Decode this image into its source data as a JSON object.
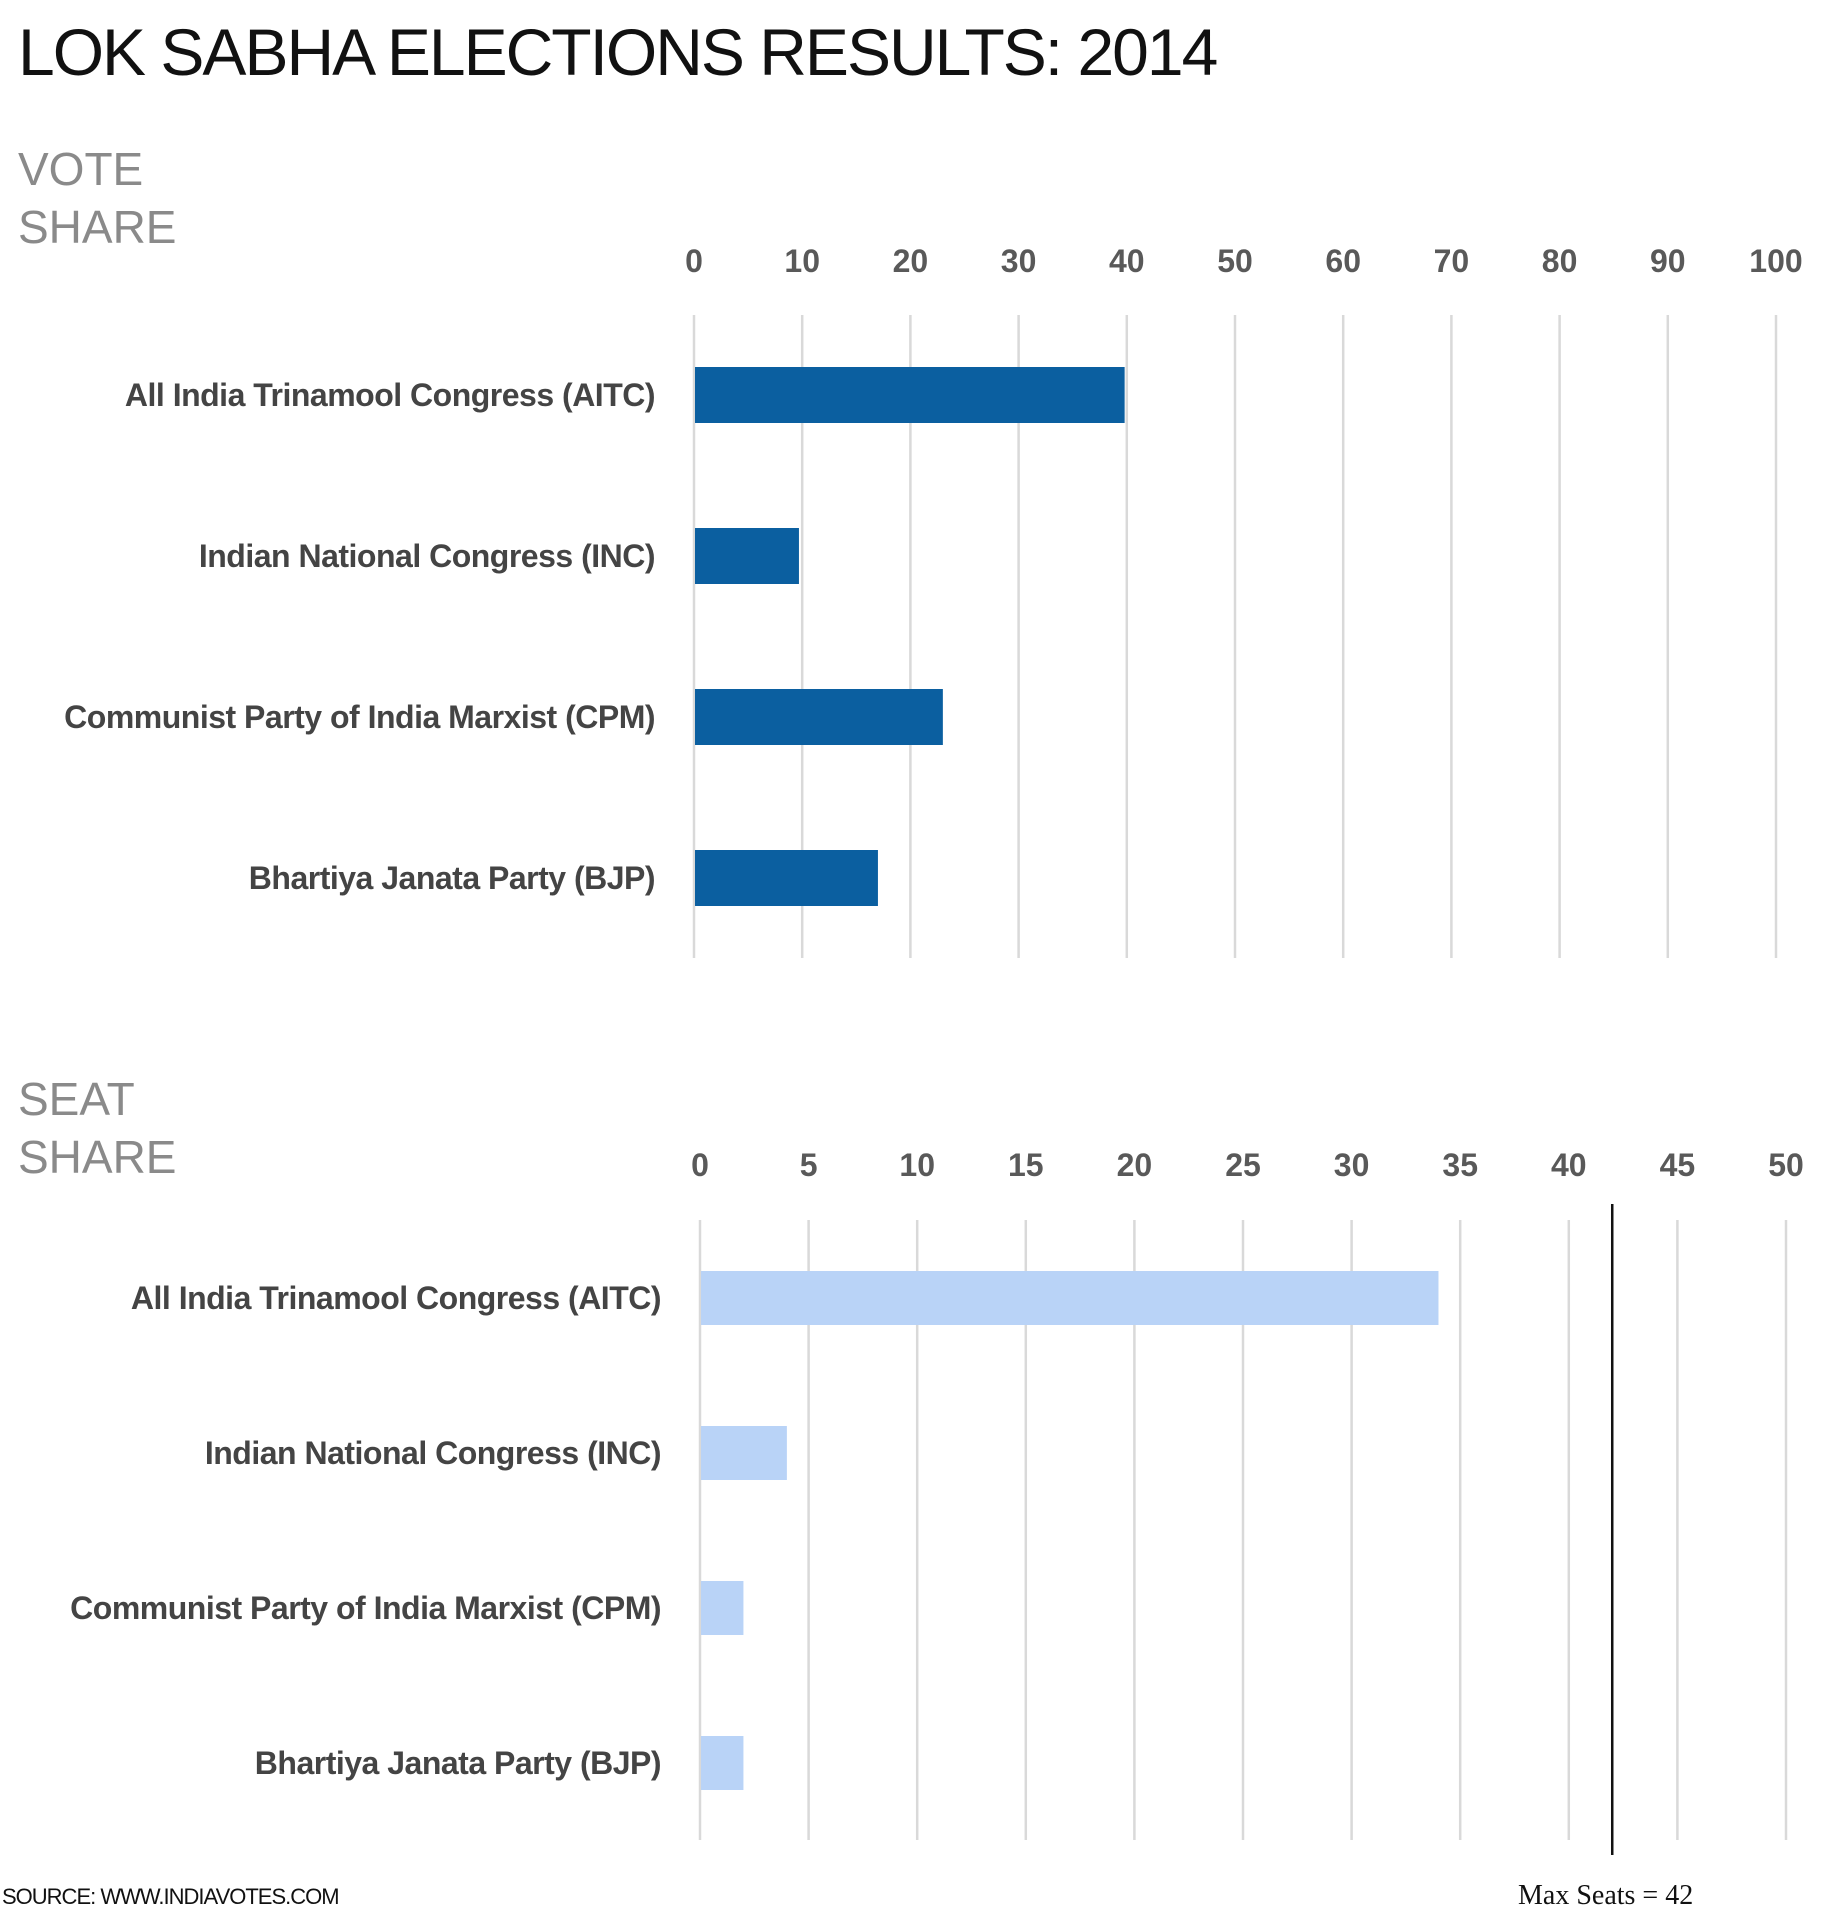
{
  "title": "LOK SABHA ELECTIONS RESULTS: 2014",
  "vote_section": {
    "line1": "VOTE",
    "line2": "SHARE"
  },
  "seat_section": {
    "line1": "SEAT",
    "line2": "SHARE"
  },
  "source": "SOURCE: WWW.INDIAVOTES.COM",
  "annotation": "Max Seats = 42",
  "colors": {
    "vote_bar": "#0b5fa0",
    "seat_bar": "#b9d3f7",
    "grid": "#d9d9d9",
    "reference_line": "#111111"
  },
  "chart_data": [
    {
      "type": "bar",
      "orientation": "horizontal",
      "title": "VOTE SHARE",
      "categories": [
        "All India Trinamool Congress (AITC)",
        "Indian National Congress (INC)",
        "Communist Party of India Marxist (CPM)",
        "Bhartiya Janata Party (BJP)"
      ],
      "values": [
        39.8,
        9.7,
        23.0,
        17.0
      ],
      "xlim": [
        0,
        100
      ],
      "ticks": [
        0,
        10,
        20,
        30,
        40,
        50,
        60,
        70,
        80,
        90,
        100
      ],
      "axis_position": "top",
      "grid": true,
      "legend": "none"
    },
    {
      "type": "bar",
      "orientation": "horizontal",
      "title": "SEAT SHARE",
      "categories": [
        "All India Trinamool Congress (AITC)",
        "Indian National Congress (INC)",
        "Communist Party of India Marxist (CPM)",
        "Bhartiya Janata Party (BJP)"
      ],
      "values": [
        34,
        4,
        2,
        2
      ],
      "xlim": [
        0,
        50
      ],
      "ticks": [
        0,
        5,
        10,
        15,
        20,
        25,
        30,
        35,
        40,
        45,
        50
      ],
      "axis_position": "top",
      "grid": true,
      "legend": "none",
      "reference_line": {
        "value": 42,
        "label": "Max Seats = 42"
      }
    }
  ]
}
